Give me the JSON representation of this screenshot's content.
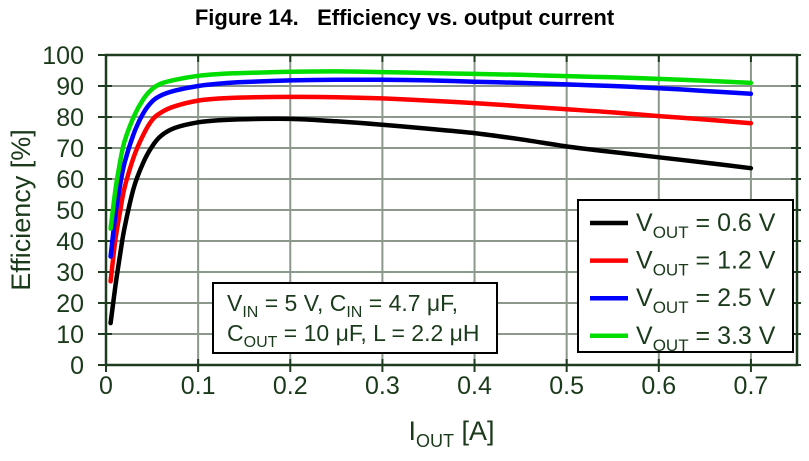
{
  "title": "Figure 14.   Efficiency vs. output current",
  "colors": {
    "background": "#ffffff",
    "text_green": "#1b3a1b",
    "grid": "#8b988b",
    "plot_border": "#203c20",
    "title_text": "#000000",
    "box_border": "#000000",
    "series_black": "#000000",
    "series_red": "#ff0000",
    "series_blue": "#0000ff",
    "series_green": "#00dd00"
  },
  "chart_data": {
    "type": "line",
    "title": "Figure 14.   Efficiency vs. output current",
    "xlabel": "IOUT [A]",
    "xlabel_parts": [
      "I",
      "_OUT",
      " [A]"
    ],
    "ylabel": "Efficiency [%]",
    "xlim": [
      0,
      0.75
    ],
    "ylim": [
      0,
      100
    ],
    "x_ticks": [
      0,
      0.1,
      0.2,
      0.3,
      0.4,
      0.5,
      0.6,
      0.7
    ],
    "y_ticks": [
      0,
      10,
      20,
      30,
      40,
      50,
      60,
      70,
      80,
      90,
      100
    ],
    "grid": true,
    "legend_position": "right-middle",
    "x": [
      0.005,
      0.01,
      0.015,
      0.02,
      0.03,
      0.04,
      0.05,
      0.06,
      0.075,
      0.1,
      0.125,
      0.15,
      0.2,
      0.25,
      0.3,
      0.35,
      0.4,
      0.45,
      0.5,
      0.55,
      0.6,
      0.65,
      0.7
    ],
    "series": [
      {
        "id": "vout-0-6-v",
        "name": "VOUT = 0.6 V",
        "label_parts": [
          "V",
          "_OUT",
          " = 0.6 V"
        ],
        "color": "#000000",
        "values": [
          13.5,
          25,
          35,
          44,
          57,
          65,
          70.5,
          74,
          76.5,
          78.3,
          79,
          79.3,
          79.4,
          78.6,
          77.5,
          76.2,
          74.8,
          72.8,
          70.5,
          68.7,
          67,
          65.3,
          63.5
        ]
      },
      {
        "id": "vout-1-2-v",
        "name": "VOUT = 1.2 V",
        "label_parts": [
          "V",
          "_OUT",
          " = 1.2 V"
        ],
        "color": "#ff0000",
        "values": [
          27,
          40,
          49,
          57,
          67,
          74,
          79,
          81.5,
          83.5,
          85.3,
          86,
          86.3,
          86.5,
          86.4,
          86,
          85.3,
          84.5,
          83.5,
          82.5,
          81.5,
          80.3,
          79.2,
          78
        ]
      },
      {
        "id": "vout-2-5-v",
        "name": "VOUT = 2.5 V",
        "label_parts": [
          "V",
          "_OUT",
          " = 2.5 V"
        ],
        "color": "#0000ff",
        "values": [
          35,
          48,
          57.5,
          65,
          74.5,
          81,
          85,
          87,
          88.5,
          90,
          90.8,
          91.3,
          91.8,
          92,
          92,
          91.8,
          91.4,
          91,
          90.5,
          90,
          89.3,
          88.4,
          87.5
        ]
      },
      {
        "id": "vout-3-3-v",
        "name": "VOUT = 3.3 V",
        "label_parts": [
          "V",
          "_OUT",
          " = 3.3 V"
        ],
        "color": "#00dd00",
        "values": [
          44,
          56,
          65,
          72,
          80,
          85.5,
          89,
          90.8,
          92,
          93.3,
          93.9,
          94.2,
          94.6,
          94.7,
          94.5,
          94.2,
          93.9,
          93.6,
          93.2,
          92.8,
          92.3,
          91.7,
          91
        ]
      }
    ],
    "conditions": {
      "text": "VIN = 5 V, CIN = 4.7 μF, COUT = 10 μF, L = 2.2 μH",
      "lines_parts": [
        [
          "V",
          "_IN",
          " = 5 V, C",
          "_IN",
          " = 4.7 μF,"
        ],
        [
          "C",
          "_OUT",
          " = 10 μF, L = 2.2 μH"
        ]
      ]
    }
  }
}
